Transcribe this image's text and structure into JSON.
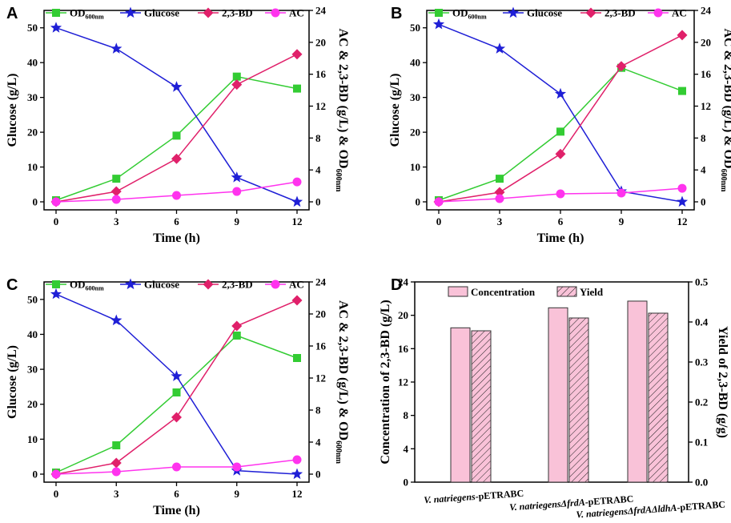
{
  "chart_data": [
    {
      "panel": "A",
      "type": "line",
      "x": [
        0,
        3,
        6,
        9,
        12
      ],
      "xlabel": "Time (h)",
      "ylabel_left": "Glucose (g/L)",
      "ylabel_right": "AC & 2,3-BD (g/L) & OD",
      "ylabel_right_sub": "600nm",
      "xlim": [
        0,
        12
      ],
      "ylim_left": [
        0,
        55
      ],
      "ylim_right": [
        0,
        24
      ],
      "xticks": [
        "0",
        "3",
        "6",
        "9",
        "12"
      ],
      "yticks_left": [
        "0",
        "10",
        "20",
        "30",
        "40",
        "50"
      ],
      "yticks_right": [
        "0",
        "4",
        "8",
        "12",
        "16",
        "20",
        "24"
      ],
      "series": [
        {
          "name": "OD",
          "name_sub": "600nm",
          "axis": "right",
          "marker": "square",
          "color": "#33cc33",
          "values": [
            0.2,
            2.9,
            8.3,
            15.7,
            14.2
          ]
        },
        {
          "name": "Glucose",
          "axis": "left",
          "marker": "star",
          "color": "#1f1fd6",
          "values": [
            50,
            44,
            33,
            7,
            0
          ]
        },
        {
          "name": "2,3-BD",
          "axis": "right",
          "marker": "diamond",
          "color": "#e0206a",
          "values": [
            0,
            1.3,
            5.4,
            14.7,
            18.5
          ]
        },
        {
          "name": "AC",
          "axis": "right",
          "marker": "circle",
          "color": "#ff33ee",
          "values": [
            0,
            0.3,
            0.8,
            1.3,
            2.5
          ]
        }
      ]
    },
    {
      "panel": "B",
      "type": "line",
      "x": [
        0,
        3,
        6,
        9,
        12
      ],
      "xlabel": "Time (h)",
      "ylabel_left": "Glucose (g/L)",
      "ylabel_right": "AC & 2,3-BD (g/L) & OD",
      "ylabel_right_sub": "600nm",
      "xlim": [
        0,
        12
      ],
      "ylim_left": [
        0,
        55
      ],
      "ylim_right": [
        0,
        24
      ],
      "xticks": [
        "0",
        "3",
        "6",
        "9",
        "12"
      ],
      "yticks_left": [
        "0",
        "10",
        "20",
        "30",
        "40",
        "50"
      ],
      "yticks_right": [
        "0",
        "4",
        "8",
        "12",
        "16",
        "20",
        "24"
      ],
      "series": [
        {
          "name": "OD",
          "name_sub": "600nm",
          "axis": "right",
          "marker": "square",
          "color": "#33cc33",
          "values": [
            0.2,
            2.9,
            8.8,
            16.8,
            13.9
          ]
        },
        {
          "name": "Glucose",
          "axis": "left",
          "marker": "star",
          "color": "#1f1fd6",
          "values": [
            51,
            44,
            31,
            3,
            0
          ]
        },
        {
          "name": "2,3-BD",
          "axis": "right",
          "marker": "diamond",
          "color": "#e0206a",
          "values": [
            0,
            1.2,
            6.0,
            17.0,
            20.9
          ]
        },
        {
          "name": "AC",
          "axis": "right",
          "marker": "circle",
          "color": "#ff33ee",
          "values": [
            0,
            0.4,
            1.0,
            1.1,
            1.7
          ]
        }
      ]
    },
    {
      "panel": "C",
      "type": "line",
      "x": [
        0,
        3,
        6,
        9,
        12
      ],
      "xlabel": "Time (h)",
      "ylabel_left": "Glucose (g/L)",
      "ylabel_right": "AC & 2,3-BD (g/L) & OD",
      "ylabel_right_sub": "600nm",
      "xlim": [
        0,
        12
      ],
      "ylim_left": [
        0,
        55
      ],
      "ylim_right": [
        0,
        24
      ],
      "xticks": [
        "0",
        "3",
        "6",
        "9",
        "12"
      ],
      "yticks_left": [
        "0",
        "10",
        "20",
        "30",
        "40",
        "50"
      ],
      "yticks_right": [
        "0",
        "4",
        "8",
        "12",
        "16",
        "20",
        "24"
      ],
      "series": [
        {
          "name": "OD",
          "name_sub": "600nm",
          "axis": "right",
          "marker": "square",
          "color": "#33cc33",
          "values": [
            0.2,
            3.6,
            10.2,
            17.3,
            14.5
          ]
        },
        {
          "name": "Glucose",
          "axis": "left",
          "marker": "star",
          "color": "#1f1fd6",
          "values": [
            51.5,
            44,
            28,
            1,
            0
          ]
        },
        {
          "name": "2,3-BD",
          "axis": "right",
          "marker": "diamond",
          "color": "#e0206a",
          "values": [
            0,
            1.4,
            7.1,
            18.5,
            21.7
          ]
        },
        {
          "name": "AC",
          "axis": "right",
          "marker": "circle",
          "color": "#ff33ee",
          "values": [
            0,
            0.3,
            0.9,
            0.9,
            1.8
          ]
        }
      ]
    },
    {
      "panel": "D",
      "type": "bar",
      "categories": [
        {
          "italic": "V. natriegens",
          "plain": "-pETRABC"
        },
        {
          "italic": "V. natriegensΔfrdA",
          "plain": "-pETRABC"
        },
        {
          "italic": "V. natriegensΔfrdAΔldhA",
          "plain": "-pETRABC"
        }
      ],
      "ylabel_left": "Concentration of 2,3-BD (g/L)",
      "ylabel_right": "Yield of 2,3-BD (g/g)",
      "ylim_left": [
        0,
        24
      ],
      "ylim_right": [
        0,
        0.5
      ],
      "yticks_left": [
        "0",
        "4",
        "8",
        "12",
        "16",
        "20",
        "24"
      ],
      "yticks_right": [
        "0.0",
        "0.1",
        "0.2",
        "0.3",
        "0.4",
        "0.5"
      ],
      "series": [
        {
          "name": "Concentration",
          "axis": "left",
          "fill": "#f9c2d8",
          "pattern": "solid",
          "values": [
            18.5,
            20.9,
            21.7
          ]
        },
        {
          "name": "Yield",
          "axis": "right",
          "fill": "#f9c2d8",
          "pattern": "hatched",
          "values": [
            0.378,
            0.41,
            0.422
          ]
        }
      ]
    }
  ]
}
